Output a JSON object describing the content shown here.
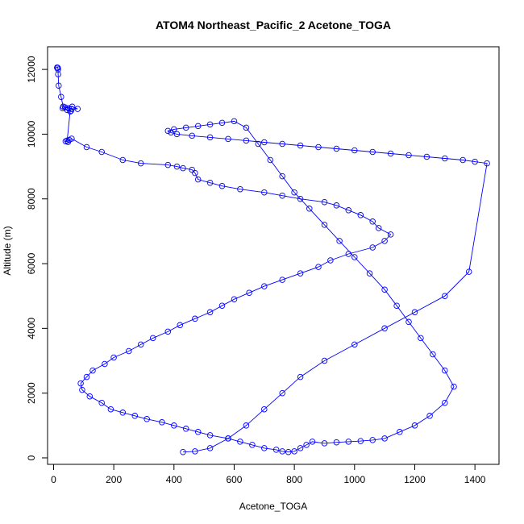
{
  "chart_data": {
    "type": "line",
    "title": "ATOM4 Northeast_Pacific_2 Acetone_TOGA",
    "xlabel": "Acetone_TOGA",
    "ylabel": "Altitude (m)",
    "xlim": [
      -20,
      1480
    ],
    "ylim": [
      -200,
      12700
    ],
    "x_ticks": [
      0,
      200,
      400,
      600,
      800,
      1000,
      1200,
      1400
    ],
    "y_ticks": [
      0,
      2000,
      4000,
      6000,
      8000,
      10000,
      12000
    ],
    "grid": false,
    "legend": "none",
    "series_color": "#0000ff",
    "marker": "open-circle",
    "series": [
      {
        "x": [
          12,
          12,
          14,
          15,
          15,
          17,
          25,
          32,
          50,
          60,
          80,
          62,
          38,
          30,
          45,
          58,
          55,
          45,
          40,
          48,
          52,
          60,
          110,
          160,
          230,
          290,
          380,
          410,
          430,
          460,
          470,
          480,
          520,
          560,
          620,
          700,
          760,
          820,
          900,
          940,
          980,
          1020,
          1060,
          1080,
          1120,
          1100,
          1060,
          980,
          920,
          880,
          820,
          760,
          700,
          650,
          600,
          560,
          520,
          470,
          420,
          380,
          330,
          290,
          250,
          200,
          170,
          130,
          110,
          90,
          95,
          120,
          160,
          190,
          230,
          270,
          310,
          360,
          400,
          440,
          480,
          520,
          580,
          620,
          660,
          700,
          740,
          760,
          780,
          800,
          820,
          840,
          860,
          900,
          940,
          980,
          1020,
          1060,
          1100,
          1150,
          1200,
          1250,
          1300,
          1330,
          1300,
          1260,
          1220,
          1180,
          1140,
          1100,
          1050,
          1000,
          950,
          900,
          850,
          800,
          760,
          720,
          680,
          640,
          600,
          560,
          520,
          480,
          440,
          400,
          380,
          390,
          410,
          460,
          520,
          580,
          640,
          700,
          760,
          820,
          880,
          940,
          1000,
          1060,
          1120,
          1180,
          1240,
          1300,
          1360,
          1400,
          1440,
          1380,
          1300,
          1200,
          1100,
          1000,
          900,
          820,
          760,
          700,
          640,
          580,
          520,
          470,
          430
        ],
        "y": [
          12050,
          12060,
          12050,
          12000,
          11850,
          11500,
          11150,
          10850,
          10800,
          10780,
          10780,
          10850,
          10830,
          10800,
          10750,
          10720,
          10700,
          9800,
          9780,
          9760,
          9820,
          9860,
          9600,
          9450,
          9200,
          9100,
          9050,
          9000,
          8950,
          8900,
          8800,
          8600,
          8500,
          8400,
          8300,
          8200,
          8100,
          8000,
          7900,
          7800,
          7650,
          7500,
          7300,
          7100,
          6900,
          6700,
          6500,
          6300,
          6100,
          5900,
          5700,
          5500,
          5300,
          5100,
          4900,
          4700,
          4500,
          4300,
          4100,
          3900,
          3700,
          3500,
          3300,
          3100,
          2900,
          2700,
          2500,
          2300,
          2100,
          1900,
          1700,
          1500,
          1400,
          1300,
          1200,
          1100,
          1000,
          900,
          800,
          700,
          600,
          500,
          400,
          300,
          250,
          200,
          180,
          200,
          300,
          400,
          500,
          450,
          480,
          500,
          520,
          550,
          600,
          800,
          1000,
          1300,
          1700,
          2200,
          2700,
          3200,
          3700,
          4200,
          4700,
          5200,
          5700,
          6200,
          6700,
          7200,
          7700,
          8200,
          8700,
          9200,
          9700,
          10200,
          10400,
          10350,
          10300,
          10250,
          10200,
          10150,
          10100,
          10050,
          10000,
          9950,
          9900,
          9850,
          9800,
          9750,
          9700,
          9650,
          9600,
          9550,
          9500,
          9450,
          9400,
          9350,
          9300,
          9250,
          9200,
          9150,
          9100,
          5750,
          5000,
          4500,
          4000,
          3500,
          3000,
          2500,
          2000,
          1500,
          1000,
          600,
          300,
          200,
          180
        ]
      }
    ]
  }
}
